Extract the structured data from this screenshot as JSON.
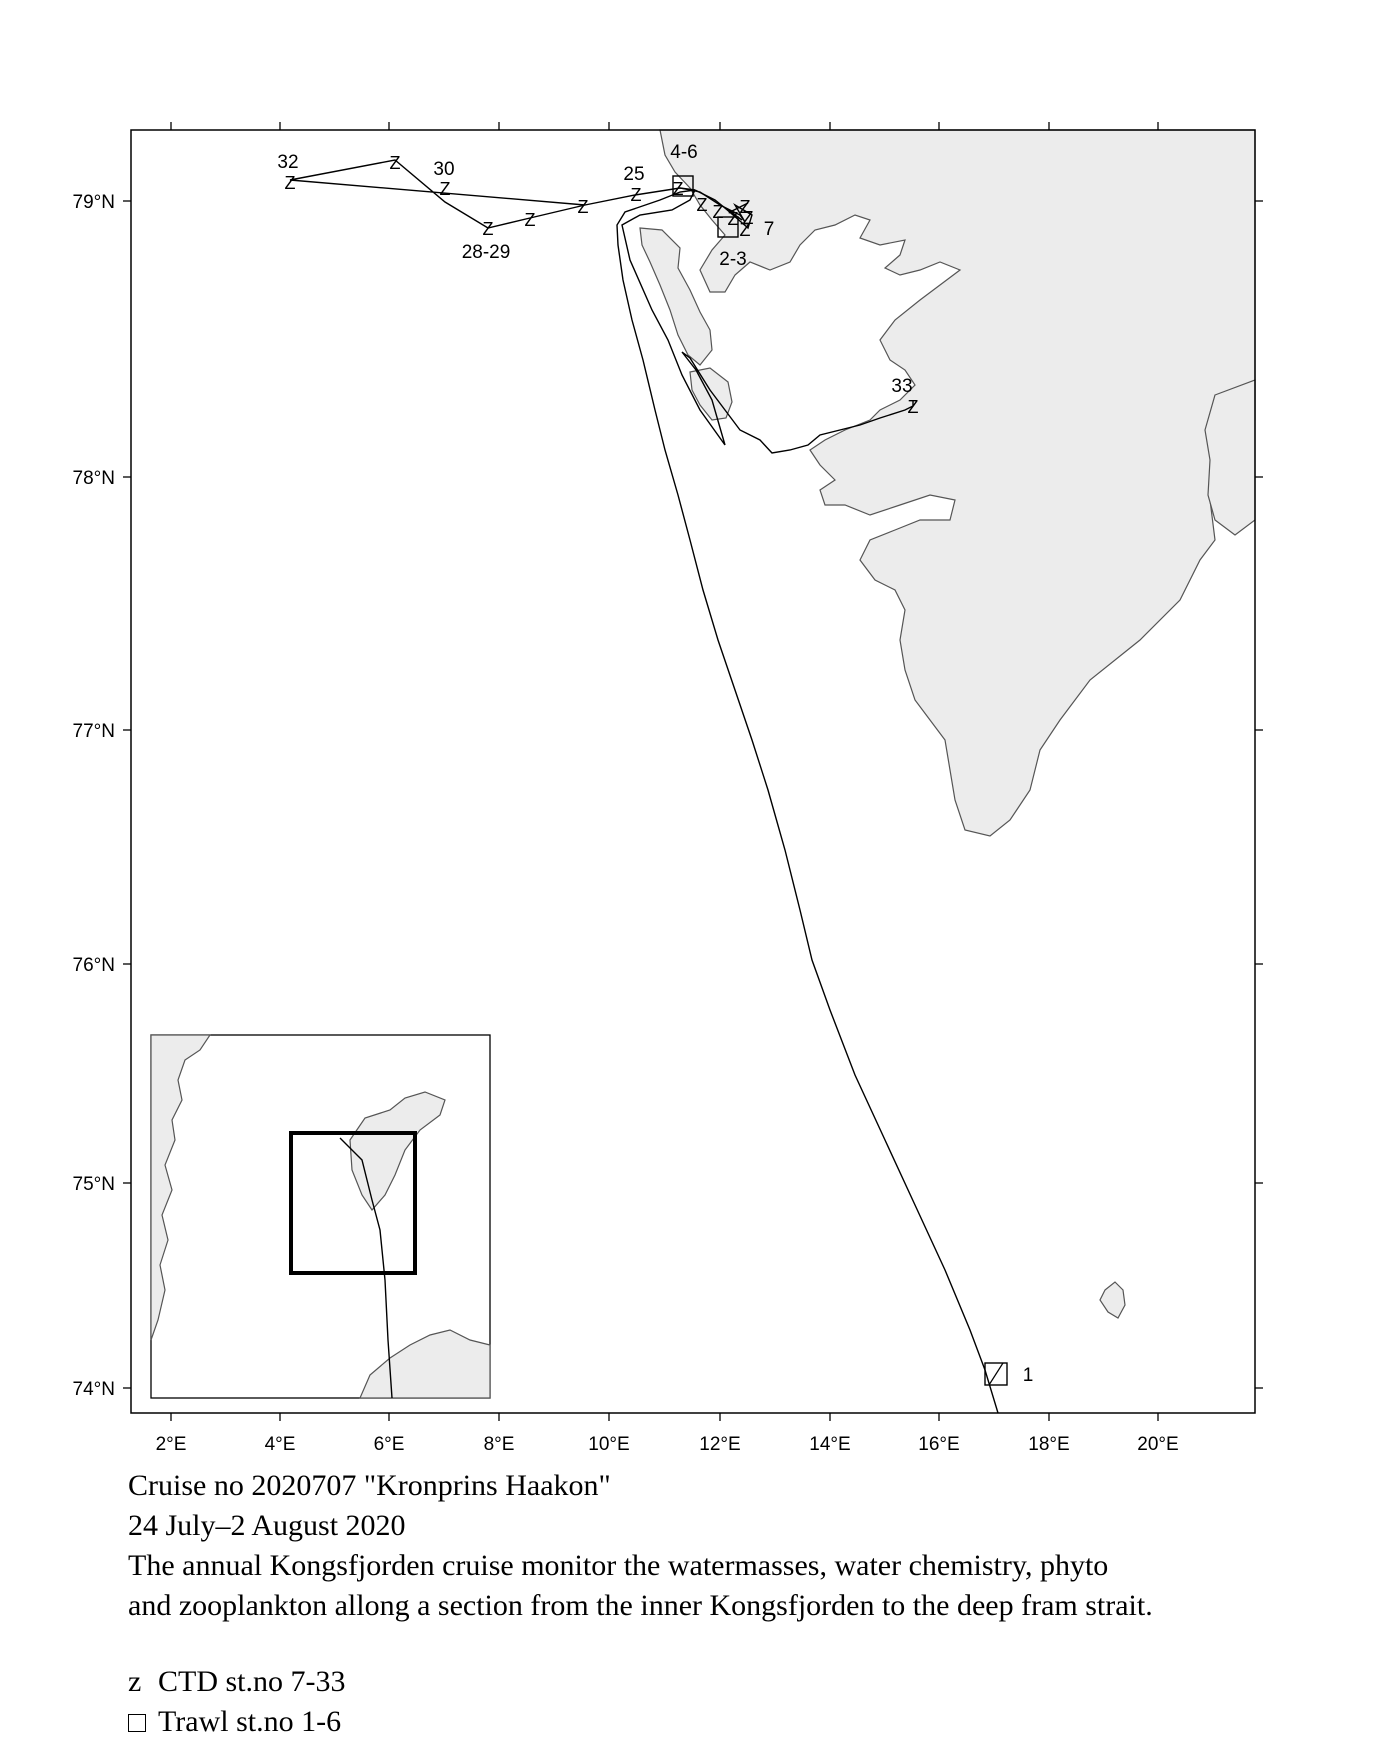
{
  "map": {
    "lon_ticks": [
      "2°E",
      "4°E",
      "6°E",
      "8°E",
      "10°E",
      "12°E",
      "14°E",
      "16°E",
      "18°E",
      "20°E"
    ],
    "lat_ticks": [
      "79°N",
      "78°N",
      "77°N",
      "76°N",
      "75°N",
      "74°N"
    ],
    "station_labels": [
      "32",
      "30",
      "28-29",
      "25",
      "4-6",
      "7",
      "2-3",
      "33",
      "1"
    ],
    "z_symbol": "Z"
  },
  "caption": {
    "line1": "Cruise no 2020707  \"Kronprins Haakon\"",
    "line2": "24 July–2 August 2020",
    "line3": "The annual Kongsfjorden cruise monitor the watermasses, water chemistry, phyto",
    "line4": "and zooplankton allong a section from the inner Kongsfjorden to the deep fram strait."
  },
  "legend": {
    "ctd_symbol": "z",
    "ctd_label": "CTD st.no 7-33",
    "trawl_label": "Trawl st.no 1-6"
  }
}
